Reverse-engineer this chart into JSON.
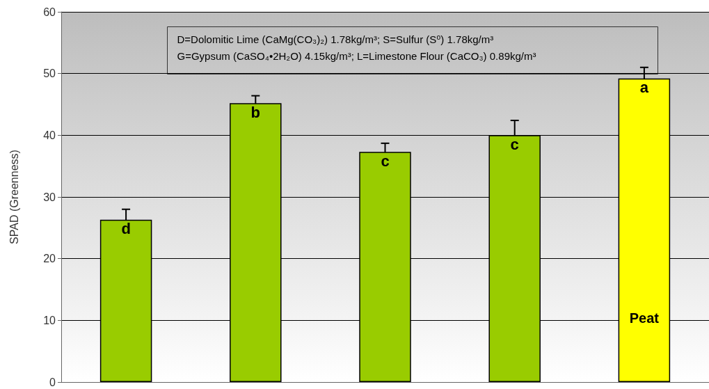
{
  "chart_data": {
    "type": "bar",
    "ylabel": "SPAD (Greenness)",
    "categories": [
      null,
      null,
      null,
      null,
      "Peat"
    ],
    "values": [
      26.3,
      45.2,
      37.3,
      40.0,
      49.2
    ],
    "colors": [
      "#99cc00",
      "#99cc00",
      "#99cc00",
      "#99cc00",
      "#ffff00"
    ],
    "errors": [
      1.7,
      1.2,
      1.4,
      2.4,
      1.8
    ],
    "value_labels": [
      "d",
      "b",
      "c",
      "c",
      "a"
    ],
    "ylim": [
      0,
      60
    ],
    "yticks": [
      0,
      10,
      20,
      30,
      40,
      50,
      60
    ],
    "grid": "y",
    "annotations": [
      "D=Dolomitic Lime (CaMg(CO₃)₂) 1.78kg/m³; S=Sulfur (S⁰) 1.78kg/m³",
      "G=Gypsum (CaSO₄•2H₂O) 4.15kg/m³; L=Limestone Flour (CaCO₃) 0.89kg/m³"
    ]
  }
}
